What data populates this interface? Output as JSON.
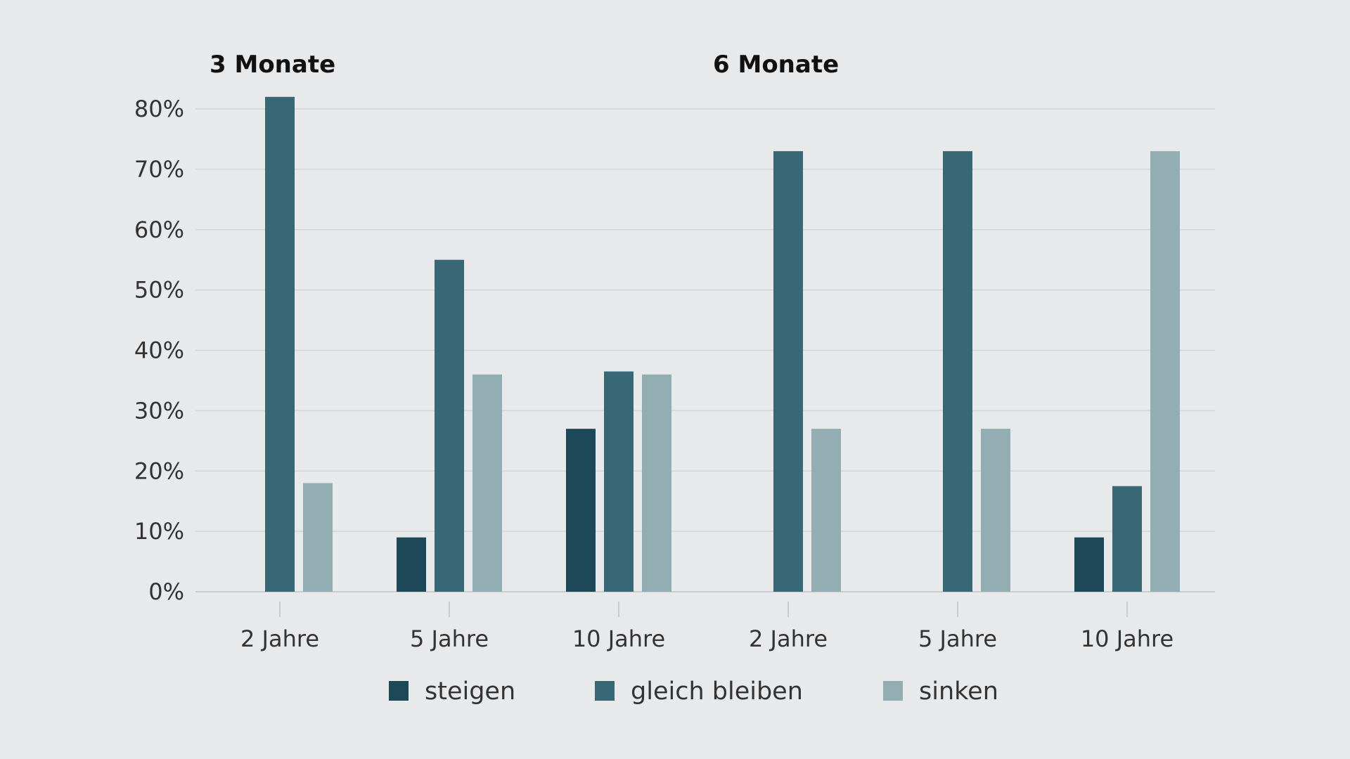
{
  "chart_data": {
    "type": "bar",
    "panels": [
      {
        "title": "3 Monate",
        "categories": [
          "2 Jahre",
          "5 Jahre",
          "10 Jahre"
        ]
      },
      {
        "title": "6 Monate",
        "categories": [
          "2 Jahre",
          "5 Jahre",
          "10 Jahre"
        ]
      }
    ],
    "categories": [
      "2 Jahre",
      "5 Jahre",
      "10 Jahre",
      "2 Jahre",
      "5 Jahre",
      "10 Jahre"
    ],
    "series": [
      {
        "name": "steigen",
        "color": "#1c4858",
        "values": [
          0,
          9,
          27,
          0,
          0,
          9
        ]
      },
      {
        "name": "gleich bleiben",
        "color": "#386876",
        "values": [
          82,
          55,
          36.5,
          73,
          73,
          17.5
        ]
      },
      {
        "name": "sinken",
        "color": "#93aeb2",
        "values": [
          18,
          36,
          36,
          27,
          27,
          73
        ]
      }
    ],
    "yticks": [
      "0%",
      "10%",
      "20%",
      "30%",
      "40%",
      "50%",
      "60%",
      "70%",
      "80%"
    ],
    "ylim": [
      0,
      80
    ],
    "xlabel": "",
    "ylabel": "",
    "legend_position": "bottom",
    "grid": true
  }
}
